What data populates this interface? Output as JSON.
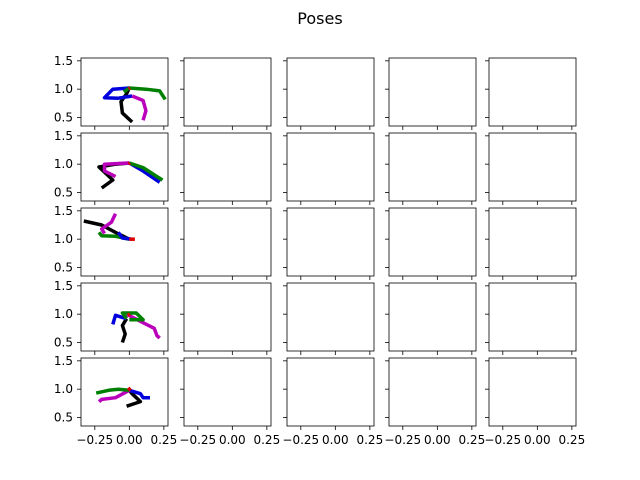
{
  "chart_data": {
    "type": "line",
    "title": "Poses",
    "rows": 5,
    "cols": 5,
    "xlim": [
      -0.35,
      0.28
    ],
    "ylim": [
      0.35,
      1.55
    ],
    "yticks": [
      0.5,
      1.0,
      1.5
    ],
    "ytick_labels": [
      "0.5",
      "1.0",
      "1.5"
    ],
    "xticks": [
      -0.25,
      0.0,
      0.25
    ],
    "xtick_labels": [
      "−0.25",
      "0.00",
      "0.25"
    ],
    "poses": [
      {
        "row": 0,
        "segments": [
          {
            "color": "#000000",
            "points": [
              [
                0.02,
                0.42
              ],
              [
                -0.05,
                0.58
              ],
              [
                -0.06,
                0.78
              ],
              [
                -0.02,
                0.92
              ],
              [
                0.0,
                1.02
              ]
            ]
          },
          {
            "color": "#0000dd",
            "points": [
              [
                0.0,
                1.02
              ],
              [
                -0.12,
                1.0
              ],
              [
                -0.18,
                0.85
              ],
              [
                -0.08,
                0.84
              ],
              [
                0.02,
                0.88
              ]
            ]
          },
          {
            "color": "#bb00bb",
            "points": [
              [
                0.02,
                0.88
              ],
              [
                0.1,
                0.8
              ],
              [
                0.12,
                0.62
              ],
              [
                0.1,
                0.45
              ]
            ]
          },
          {
            "color": "#008000",
            "points": [
              [
                0.0,
                1.02
              ],
              [
                0.12,
                1.0
              ],
              [
                0.22,
                0.97
              ],
              [
                0.26,
                0.82
              ]
            ]
          },
          {
            "color": "#008000",
            "points": [
              [
                0.0,
                1.02
              ],
              [
                -0.04,
                0.95
              ]
            ]
          },
          {
            "color": "#dd0000",
            "points": [
              [
                -0.005,
                1.005
              ],
              [
                0.005,
                1.02
              ]
            ]
          }
        ]
      },
      {
        "row": 1,
        "segments": [
          {
            "color": "#000000",
            "points": [
              [
                -0.2,
                0.58
              ],
              [
                -0.12,
                0.72
              ],
              [
                -0.22,
                0.95
              ],
              [
                -0.1,
                1.0
              ],
              [
                0.0,
                1.02
              ]
            ]
          },
          {
            "color": "#bb00bb",
            "points": [
              [
                0.0,
                1.02
              ],
              [
                -0.18,
                1.0
              ],
              [
                -0.18,
                0.88
              ],
              [
                -0.1,
                0.78
              ]
            ]
          },
          {
            "color": "#0000dd",
            "points": [
              [
                0.0,
                1.02
              ],
              [
                0.1,
                0.88
              ],
              [
                0.22,
                0.68
              ]
            ]
          },
          {
            "color": "#008000",
            "points": [
              [
                0.0,
                1.02
              ],
              [
                0.1,
                0.94
              ],
              [
                0.2,
                0.78
              ],
              [
                0.24,
                0.72
              ]
            ]
          },
          {
            "color": "#dd0000",
            "points": [
              [
                -0.005,
                1.0
              ],
              [
                0.005,
                1.02
              ]
            ]
          }
        ]
      },
      {
        "row": 2,
        "segments": [
          {
            "color": "#000000",
            "points": [
              [
                -0.33,
                1.32
              ],
              [
                -0.2,
                1.25
              ],
              [
                -0.1,
                1.12
              ],
              [
                0.0,
                1.0
              ]
            ]
          },
          {
            "color": "#bb00bb",
            "points": [
              [
                -0.1,
                1.45
              ],
              [
                -0.13,
                1.3
              ],
              [
                -0.2,
                1.18
              ],
              [
                -0.18,
                1.1
              ]
            ]
          },
          {
            "color": "#008000",
            "points": [
              [
                -0.22,
                1.12
              ],
              [
                -0.2,
                1.06
              ],
              [
                -0.1,
                1.05
              ],
              [
                0.0,
                1.0
              ]
            ]
          },
          {
            "color": "#0000dd",
            "points": [
              [
                -0.08,
                1.12
              ],
              [
                -0.05,
                1.02
              ],
              [
                0.02,
                1.0
              ]
            ]
          },
          {
            "color": "#dd0000",
            "points": [
              [
                0.0,
                1.0
              ],
              [
                0.04,
                1.0
              ]
            ]
          }
        ]
      },
      {
        "row": 3,
        "segments": [
          {
            "color": "#000000",
            "points": [
              [
                -0.05,
                0.5
              ],
              [
                -0.03,
                0.65
              ],
              [
                -0.05,
                0.8
              ],
              [
                -0.02,
                0.92
              ]
            ]
          },
          {
            "color": "#0000dd",
            "points": [
              [
                -0.12,
                0.82
              ],
              [
                -0.1,
                0.98
              ],
              [
                -0.02,
                0.92
              ]
            ]
          },
          {
            "color": "#bb00bb",
            "points": [
              [
                -0.02,
                1.0
              ],
              [
                0.1,
                0.85
              ],
              [
                0.18,
                0.75
              ],
              [
                0.2,
                0.62
              ],
              [
                0.22,
                0.58
              ]
            ]
          },
          {
            "color": "#008000",
            "points": [
              [
                -0.02,
                0.92
              ],
              [
                -0.05,
                1.02
              ],
              [
                0.05,
                1.02
              ],
              [
                0.1,
                0.9
              ],
              [
                0.0,
                0.9
              ]
            ]
          },
          {
            "color": "#dd0000",
            "points": [
              [
                -0.01,
                0.98
              ],
              [
                0.005,
                1.0
              ]
            ]
          }
        ]
      },
      {
        "row": 4,
        "segments": [
          {
            "color": "#000000",
            "points": [
              [
                -0.02,
                0.7
              ],
              [
                0.08,
                0.78
              ],
              [
                0.02,
                0.92
              ],
              [
                0.0,
                0.98
              ]
            ]
          },
          {
            "color": "#0000dd",
            "points": [
              [
                0.0,
                0.98
              ],
              [
                0.08,
                0.92
              ],
              [
                0.1,
                0.85
              ],
              [
                0.15,
                0.85
              ]
            ]
          },
          {
            "color": "#bb00bb",
            "points": [
              [
                0.0,
                0.98
              ],
              [
                -0.1,
                0.85
              ],
              [
                -0.2,
                0.82
              ],
              [
                -0.22,
                0.78
              ]
            ]
          },
          {
            "color": "#008000",
            "points": [
              [
                -0.24,
                0.93
              ],
              [
                -0.15,
                0.98
              ],
              [
                -0.08,
                1.0
              ],
              [
                0.0,
                0.98
              ]
            ]
          },
          {
            "color": "#dd0000",
            "points": [
              [
                -0.01,
                0.98
              ],
              [
                0.01,
                1.02
              ]
            ]
          }
        ]
      }
    ]
  }
}
